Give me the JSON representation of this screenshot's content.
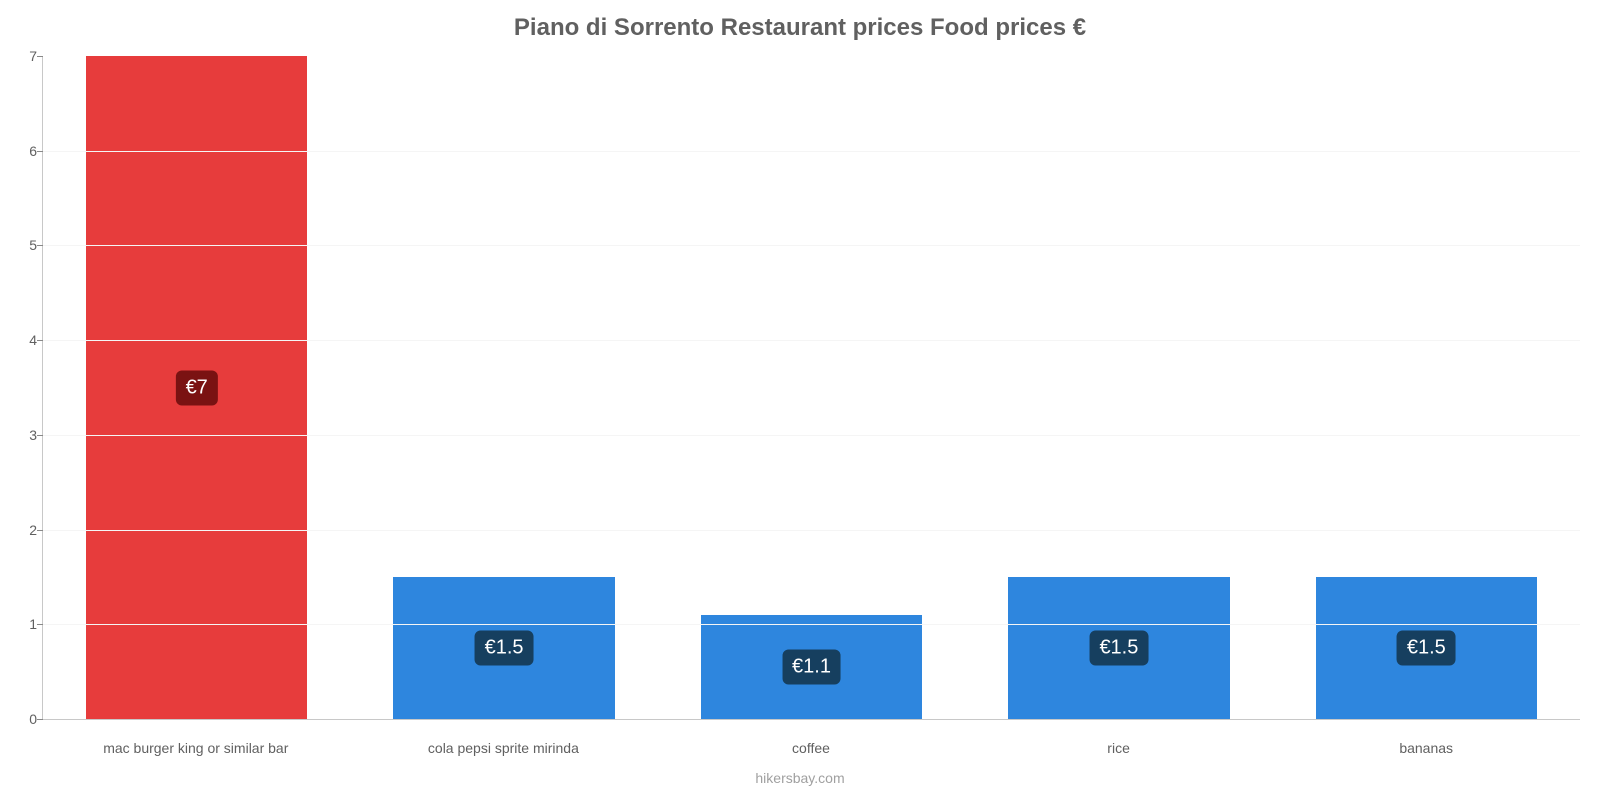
{
  "chart": {
    "type": "bar",
    "title": "Piano di Sorrento Restaurant prices Food prices €",
    "title_color": "#606060",
    "title_fontsize": 24,
    "categories": [
      "mac burger king or similar bar",
      "cola pepsi sprite mirinda",
      "coffee",
      "rice",
      "bananas"
    ],
    "values": [
      7,
      1.5,
      1.1,
      1.5,
      1.5
    ],
    "value_labels": [
      "€7",
      "€1.5",
      "€1.1",
      "€1.5",
      "€1.5"
    ],
    "bar_colors": [
      "#e73c3c",
      "#2e86de",
      "#2e86de",
      "#2e86de",
      "#2e86de"
    ],
    "label_badge_colors": [
      "#7a1212",
      "#163f5f",
      "#163f5f",
      "#163f5f",
      "#163f5f"
    ],
    "value_label_fontsize": 20,
    "ylim": [
      0,
      7
    ],
    "yticks": [
      0,
      1,
      2,
      3,
      4,
      5,
      6,
      7
    ],
    "ytick_fontsize": 14,
    "ytick_color": "#606060",
    "xlabel_fontsize": 14,
    "xlabel_color": "#606060",
    "grid_color": "#f5f5f5",
    "axis_color": "#c8c8c8",
    "background_color": "#ffffff",
    "bar_width_ratio": 0.72
  },
  "credit": {
    "text": "hikersbay.com",
    "color": "#a0a0a0",
    "fontsize": 14
  }
}
